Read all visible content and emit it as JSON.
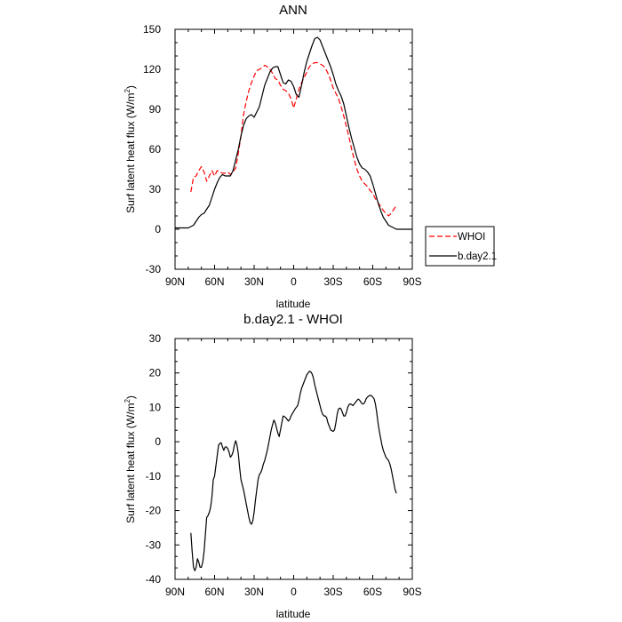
{
  "chart_data": [
    {
      "type": "line",
      "title": "ANN",
      "xlabel": "latitude",
      "ylabel": "Surf latent heat flux (W/m",
      "ylabel_sup": "2",
      "ylabel_close": ")",
      "xlim": [
        90,
        -90
      ],
      "ylim": [
        -30,
        150
      ],
      "xticks": [
        90,
        60,
        30,
        0,
        -30,
        -60,
        -90
      ],
      "xtick_labels": [
        "90N",
        "60N",
        "30N",
        "0",
        "30S",
        "60S",
        "90S"
      ],
      "yticks": [
        -30,
        0,
        30,
        60,
        90,
        120,
        150
      ],
      "ytick_labels": [
        "-30",
        "0",
        "30",
        "60",
        "90",
        "120",
        "150"
      ],
      "legend_placement": "outside-right",
      "series": [
        {
          "name": "WHOI",
          "color": "#ff0000",
          "style": "dashed",
          "x": [
            78,
            76,
            74,
            72,
            70,
            68,
            66,
            64,
            62,
            60,
            58,
            56,
            54,
            52,
            50,
            48,
            46,
            44,
            42,
            40,
            38,
            36,
            34,
            32,
            30,
            28,
            26,
            24,
            22,
            20,
            18,
            16,
            14,
            12,
            10,
            8,
            6,
            4,
            2,
            0,
            -2,
            -4,
            -6,
            -8,
            -10,
            -12,
            -14,
            -16,
            -18,
            -20,
            -22,
            -24,
            -26,
            -28,
            -30,
            -32,
            -34,
            -36,
            -38,
            -40,
            -42,
            -44,
            -46,
            -48,
            -50,
            -52,
            -54,
            -56,
            -58,
            -60,
            -62,
            -64,
            -66,
            -68,
            -70,
            -72,
            -74,
            -76,
            -78
          ],
          "y": [
            28,
            39,
            40,
            44,
            47,
            43,
            36,
            40,
            44,
            40,
            44,
            43,
            42,
            42,
            43,
            41,
            43,
            46,
            57,
            70,
            86,
            96,
            104,
            110,
            115,
            119,
            120,
            121,
            123,
            122,
            120,
            117,
            113,
            112,
            108,
            105,
            104,
            102,
            98,
            91,
            98,
            105,
            110,
            114,
            118,
            122,
            124,
            125,
            125,
            124,
            123,
            121,
            117,
            112,
            106,
            102,
            98,
            92,
            85,
            77,
            69,
            60,
            52,
            45,
            40,
            36,
            34,
            32,
            29,
            27,
            23,
            20,
            17,
            14,
            12,
            10,
            12,
            15,
            18
          ]
        },
        {
          "name": "b.day2.1",
          "color": "#000000",
          "style": "solid",
          "x": [
            90,
            88,
            86,
            84,
            82,
            80,
            78,
            76,
            74,
            72,
            70,
            68,
            66,
            64,
            62,
            60,
            58,
            56,
            54,
            52,
            50,
            48,
            46,
            44,
            42,
            40,
            38,
            36,
            34,
            32,
            30,
            28,
            26,
            24,
            22,
            20,
            18,
            16,
            14,
            12,
            10,
            8,
            6,
            4,
            2,
            0,
            -2,
            -4,
            -6,
            -8,
            -10,
            -12,
            -14,
            -16,
            -18,
            -20,
            -22,
            -24,
            -26,
            -28,
            -30,
            -32,
            -34,
            -36,
            -38,
            -40,
            -42,
            -44,
            -46,
            -48,
            -50,
            -52,
            -54,
            -56,
            -58,
            -60,
            -62,
            -64,
            -66,
            -68,
            -70,
            -72,
            -74,
            -76,
            -78,
            -80,
            -82,
            -84,
            -86,
            -88,
            -90
          ],
          "y": [
            1,
            1,
            1,
            1,
            1,
            1,
            2,
            3,
            6,
            9,
            11,
            12,
            15,
            18,
            24,
            30,
            35,
            39,
            41,
            40,
            40,
            40,
            44,
            52,
            60,
            70,
            78,
            83,
            85,
            86,
            84,
            88,
            92,
            100,
            108,
            113,
            118,
            121,
            122,
            122,
            116,
            110,
            109,
            112,
            111,
            107,
            101,
            99,
            108,
            118,
            126,
            132,
            138,
            143,
            144,
            142,
            137,
            132,
            127,
            122,
            116,
            109,
            104,
            100,
            94,
            85,
            76,
            68,
            61,
            54,
            49,
            46,
            45,
            43,
            40,
            34,
            27,
            20,
            14,
            9,
            6,
            3,
            2,
            1,
            0,
            0,
            0,
            0,
            0,
            0,
            0
          ]
        }
      ]
    },
    {
      "type": "line",
      "title": "b.day2.1 - WHOI",
      "xlabel": "latitude",
      "ylabel": "Surf latent heat flux (W/m",
      "ylabel_sup": "2",
      "ylabel_close": ")",
      "xlim": [
        90,
        -90
      ],
      "ylim": [
        -40,
        30
      ],
      "xticks": [
        90,
        60,
        30,
        0,
        -30,
        -60,
        -90
      ],
      "xtick_labels": [
        "90N",
        "60N",
        "30N",
        "0",
        "30S",
        "60S",
        "90S"
      ],
      "yticks": [
        -40,
        -30,
        -20,
        -10,
        0,
        10,
        20,
        30
      ],
      "ytick_labels": [
        "-40",
        "-30",
        "-20",
        "-10",
        "0",
        "10",
        "20",
        "30"
      ],
      "series": [
        {
          "color": "#000000",
          "style": "solid",
          "x": [
            78,
            77,
            76,
            75,
            74,
            73,
            72,
            71,
            70,
            69,
            68,
            67,
            66,
            65,
            64,
            63,
            62,
            61,
            60,
            59,
            58,
            57,
            56,
            55,
            54,
            53,
            52,
            51,
            50,
            49,
            48,
            47,
            46,
            45,
            44,
            43,
            42,
            41,
            40,
            39,
            38,
            37,
            36,
            35,
            34,
            33,
            32,
            31,
            30,
            29,
            28,
            27,
            26,
            25,
            24,
            23,
            22,
            21,
            20,
            19,
            18,
            17,
            16,
            15,
            14,
            13,
            12,
            11,
            10,
            9,
            8,
            7,
            6,
            5,
            4,
            3,
            2,
            1,
            0,
            -1,
            -2,
            -3,
            -4,
            -5,
            -6,
            -7,
            -8,
            -9,
            -10,
            -11,
            -12,
            -13,
            -14,
            -15,
            -16,
            -17,
            -18,
            -19,
            -20,
            -21,
            -22,
            -23,
            -24,
            -25,
            -26,
            -27,
            -28,
            -29,
            -30,
            -31,
            -32,
            -33,
            -34,
            -35,
            -36,
            -37,
            -38,
            -39,
            -40,
            -41,
            -42,
            -43,
            -44,
            -45,
            -46,
            -47,
            -48,
            -49,
            -50,
            -51,
            -52,
            -53,
            -54,
            -55,
            -56,
            -57,
            -58,
            -59,
            -60,
            -61,
            -62,
            -63,
            -64,
            -65,
            -66,
            -67,
            -68,
            -69,
            -70,
            -71,
            -72,
            -73,
            -74,
            -75,
            -76,
            -77,
            -78
          ],
          "y": [
            -26.5,
            -32,
            -36.5,
            -37.5,
            -36.5,
            -34,
            -35,
            -36.5,
            -36.5,
            -35,
            -32,
            -27,
            -22,
            -21.5,
            -20.5,
            -19,
            -16,
            -11,
            -10,
            -7,
            -4,
            -1,
            -0.5,
            -0.3,
            -1.5,
            -2.5,
            -1.5,
            -1.5,
            -2,
            -3,
            -4.5,
            -4,
            -3,
            -1,
            0.3,
            -1,
            -3.5,
            -7.5,
            -11,
            -12.5,
            -14,
            -16,
            -18,
            -20,
            -22,
            -23.5,
            -24,
            -23,
            -20.5,
            -17,
            -14,
            -11,
            -9.5,
            -9,
            -8,
            -6.5,
            -5.5,
            -4,
            -2.5,
            -0.5,
            1.5,
            3.5,
            5,
            6.3,
            5.5,
            4,
            2.5,
            1.5,
            3.5,
            5.5,
            7.5,
            7.3,
            7,
            6.5,
            6,
            6.5,
            7.5,
            8.2,
            8.8,
            9.5,
            10,
            10.5,
            12,
            14,
            15.5,
            16.5,
            17.5,
            18.5,
            19.5,
            20,
            20.5,
            20.3,
            19.7,
            18.5,
            16.5,
            15,
            13.5,
            12,
            10.5,
            9,
            8,
            7.5,
            7.5,
            7,
            5.5,
            4.5,
            3.5,
            3.2,
            3,
            3.5,
            5.5,
            8,
            9.5,
            9.8,
            9.5,
            8.5,
            7.5,
            7.5,
            8.5,
            10,
            10.8,
            11,
            10.8,
            10.5,
            11,
            11.5,
            12,
            12.4,
            12.1,
            11.5,
            11,
            11,
            11.5,
            12.5,
            13,
            13.3,
            13.5,
            13.4,
            13,
            12.5,
            11,
            8.5,
            5.5,
            3,
            1,
            -1,
            -2.5,
            -3.5,
            -4.5,
            -5,
            -5.5,
            -6.5,
            -8,
            -10,
            -12,
            -14,
            -15
          ]
        }
      ]
    }
  ]
}
